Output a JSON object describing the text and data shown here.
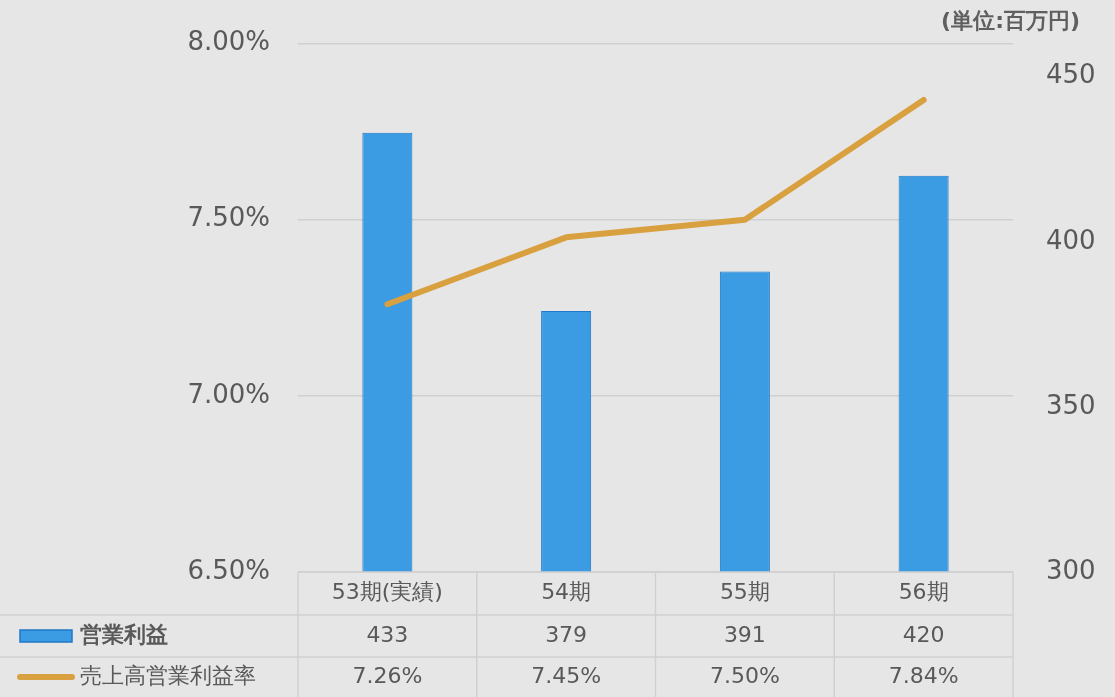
{
  "chart_data": {
    "type": "bar",
    "y2label": "(単位:百万円)",
    "categories": [
      "53期(実績)",
      "54期",
      "55期",
      "56期"
    ],
    "series": [
      {
        "name": "営業利益",
        "axis": "y2",
        "color": "#3b9be3",
        "values": [
          433,
          379,
          391,
          420
        ],
        "value_labels": [
          "433",
          "379",
          "391",
          "420"
        ]
      },
      {
        "name": "売上高営業利益率",
        "type": "line",
        "color": "#d9a03f",
        "values": [
          7.26,
          7.45,
          7.5,
          7.84
        ],
        "value_labels": [
          "7.26%",
          "7.45%",
          "7.50%",
          "7.84%"
        ]
      }
    ],
    "ylim": [
      6.5,
      8.0
    ],
    "yticks": [
      {
        "value": 6.5,
        "label": "6.50%"
      },
      {
        "value": 7.0,
        "label": "7.00%"
      },
      {
        "value": 7.5,
        "label": "7.50%"
      },
      {
        "value": 8.0,
        "label": "8.00%"
      }
    ],
    "y2lim": [
      300,
      460
    ],
    "y2ticks": [
      300,
      350,
      400,
      450
    ],
    "grid": "y",
    "legend": "bottom left",
    "marker": "none",
    "line_style": "solid",
    "data_labels": true
  }
}
